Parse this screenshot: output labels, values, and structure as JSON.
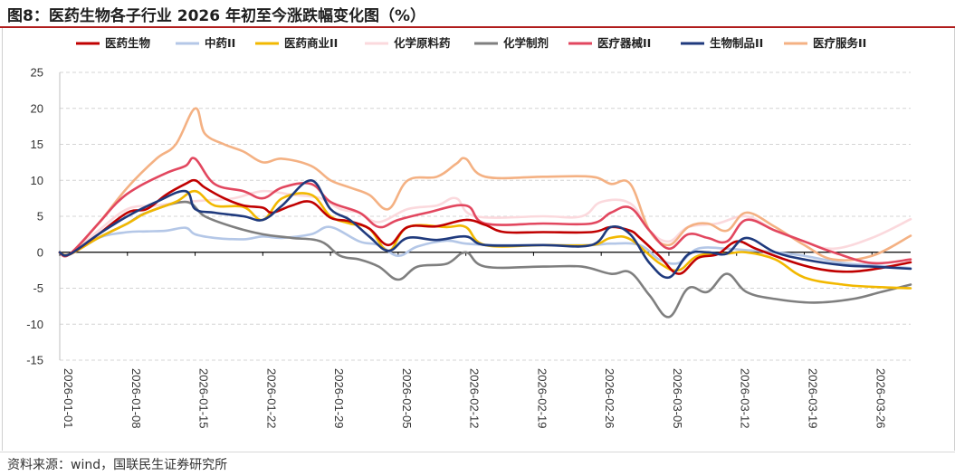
{
  "figure": {
    "title": "图8：医药生物各子行业 2026 年初至今涨跌幅变化图（%）",
    "source": "资料来源：wind，国联民生证券研究所"
  },
  "chart_data": {
    "type": "line",
    "title": "",
    "xlabel": "",
    "ylabel": "",
    "ylim": [
      -15,
      25
    ],
    "yticks": [
      -15,
      -10,
      -5,
      0,
      5,
      10,
      15,
      20,
      25
    ],
    "xlim": [
      "2026-01-01",
      "2026-03-30"
    ],
    "x_tick_labels": [
      "2026-01-01",
      "2026-01-08",
      "2026-01-15",
      "2026-01-22",
      "2026-01-29",
      "2026-02-05",
      "2026-02-12",
      "2026-02-19",
      "2026-02-26",
      "2026-03-05",
      "2026-03-12",
      "2026-03-19",
      "2026-03-26"
    ],
    "grid": "horizontal dashed",
    "legend_position": "top",
    "series": [
      {
        "name": "医药生物",
        "color": "#c00000",
        "x": [
          "2026-01-01",
          "2026-01-02",
          "2026-01-05",
          "2026-01-08",
          "2026-01-10",
          "2026-01-12",
          "2026-01-14",
          "2026-01-15",
          "2026-01-16",
          "2026-01-18",
          "2026-01-20",
          "2026-01-22",
          "2026-01-23",
          "2026-01-25",
          "2026-01-27",
          "2026-01-29",
          "2026-01-31",
          "2026-02-02",
          "2026-02-04",
          "2026-02-06",
          "2026-02-09",
          "2026-02-12",
          "2026-02-14",
          "2026-02-16",
          "2026-02-20",
          "2026-02-25",
          "2026-02-27",
          "2026-03-01",
          "2026-03-02",
          "2026-03-04",
          "2026-03-06",
          "2026-03-08",
          "2026-03-10",
          "2026-03-12",
          "2026-03-14",
          "2026-03-17",
          "2026-03-20",
          "2026-03-23",
          "2026-03-26",
          "2026-03-30"
        ],
        "y": [
          0,
          -0.3,
          2.5,
          5.5,
          6,
          8,
          9.5,
          10,
          9,
          7.5,
          6.5,
          6.2,
          5.5,
          6.5,
          7,
          4.8,
          4.3,
          3.3,
          1,
          3.5,
          3.6,
          4.5,
          3.8,
          2.8,
          2.8,
          2.8,
          3.5,
          3,
          2,
          -0.5,
          -3,
          -0.8,
          -0.3,
          1.5,
          0.5,
          -1,
          -2.2,
          -2.7,
          -2.4,
          -1.4
        ]
      },
      {
        "name": "中药II",
        "color": "#b4c7e7",
        "x": [
          "2026-01-01",
          "2026-01-02",
          "2026-01-05",
          "2026-01-08",
          "2026-01-10",
          "2026-01-12",
          "2026-01-14",
          "2026-01-15",
          "2026-01-17",
          "2026-01-20",
          "2026-01-22",
          "2026-01-24",
          "2026-01-27",
          "2026-01-29",
          "2026-02-01",
          "2026-02-03",
          "2026-02-05",
          "2026-02-07",
          "2026-02-10",
          "2026-02-12",
          "2026-02-15",
          "2026-02-20",
          "2026-02-25",
          "2026-02-27",
          "2026-03-02",
          "2026-03-04",
          "2026-03-06",
          "2026-03-08",
          "2026-03-11",
          "2026-03-13",
          "2026-03-16",
          "2026-03-19",
          "2026-03-23",
          "2026-03-26",
          "2026-03-30"
        ],
        "y": [
          0,
          -0.3,
          2,
          2.8,
          2.9,
          3,
          3.4,
          2.5,
          2,
          1.8,
          2.2,
          2,
          2.5,
          3.5,
          1.5,
          1,
          -0.5,
          0.8,
          1.6,
          1.2,
          1,
          1,
          1,
          1.2,
          1,
          -1,
          -1.5,
          0.5,
          0.5,
          0.3,
          0,
          -0.5,
          -1.5,
          -1.8,
          -2.2
        ]
      },
      {
        "name": "医药商业II",
        "color": "#f2b800",
        "x": [
          "2026-01-01",
          "2026-01-02",
          "2026-01-05",
          "2026-01-08",
          "2026-01-10",
          "2026-01-13",
          "2026-01-15",
          "2026-01-17",
          "2026-01-20",
          "2026-01-22",
          "2026-01-24",
          "2026-01-27",
          "2026-01-29",
          "2026-01-31",
          "2026-02-02",
          "2026-02-04",
          "2026-02-06",
          "2026-02-10",
          "2026-02-12",
          "2026-02-14",
          "2026-02-20",
          "2026-02-25",
          "2026-02-27",
          "2026-03-01",
          "2026-03-04",
          "2026-03-06",
          "2026-03-08",
          "2026-03-11",
          "2026-03-13",
          "2026-03-16",
          "2026-03-19",
          "2026-03-23",
          "2026-03-26",
          "2026-03-30"
        ],
        "y": [
          0,
          -0.3,
          2,
          4,
          5.5,
          7,
          8.5,
          6.5,
          6.3,
          4.5,
          7.5,
          8,
          5,
          4,
          3.3,
          0.2,
          3.5,
          3.5,
          3.5,
          1,
          1,
          1,
          2,
          1.8,
          -1.5,
          -2.5,
          -0.5,
          -0.2,
          0,
          -1,
          -3.5,
          -4.5,
          -4.8,
          -5
        ]
      },
      {
        "name": "化学原料药",
        "color": "#fbd9dd",
        "x": [
          "2026-01-01",
          "2026-01-02",
          "2026-01-05",
          "2026-01-08",
          "2026-01-11",
          "2026-01-14",
          "2026-01-16",
          "2026-01-19",
          "2026-01-22",
          "2026-01-25",
          "2026-01-28",
          "2026-01-30",
          "2026-02-01",
          "2026-02-03",
          "2026-02-06",
          "2026-02-09",
          "2026-02-11",
          "2026-02-13",
          "2026-02-20",
          "2026-02-24",
          "2026-02-26",
          "2026-03-01",
          "2026-03-03",
          "2026-03-05",
          "2026-03-07",
          "2026-03-10",
          "2026-03-13",
          "2026-03-16",
          "2026-03-19",
          "2026-03-22",
          "2026-03-26",
          "2026-03-30"
        ],
        "y": [
          0,
          -0.3,
          3,
          6,
          6.5,
          7,
          7.2,
          7.5,
          8.5,
          8,
          7.5,
          6,
          5.5,
          4.2,
          6,
          6.5,
          7.5,
          5,
          5,
          5,
          7,
          6.8,
          3,
          1.5,
          3.5,
          4,
          5,
          3,
          1.5,
          0.5,
          2,
          4.6
        ]
      },
      {
        "name": "化学制剂",
        "color": "#7f7f7f",
        "x": [
          "2026-01-01",
          "2026-01-02",
          "2026-01-05",
          "2026-01-08",
          "2026-01-10",
          "2026-01-14",
          "2026-01-16",
          "2026-01-19",
          "2026-01-22",
          "2026-01-25",
          "2026-01-28",
          "2026-01-30",
          "2026-02-01",
          "2026-02-03",
          "2026-02-05",
          "2026-02-07",
          "2026-02-10",
          "2026-02-12",
          "2026-02-14",
          "2026-02-20",
          "2026-02-24",
          "2026-02-27",
          "2026-03-01",
          "2026-03-03",
          "2026-03-05",
          "2026-03-07",
          "2026-03-09",
          "2026-03-11",
          "2026-03-13",
          "2026-03-16",
          "2026-03-20",
          "2026-03-24",
          "2026-03-27",
          "2026-03-30"
        ],
        "y": [
          0,
          -0.3,
          2,
          4,
          5.5,
          7,
          5,
          3.5,
          2.5,
          2,
          1.5,
          -0.5,
          -1,
          -2,
          -3.8,
          -2,
          -1.6,
          0,
          -2,
          -2,
          -2,
          -3,
          -2.8,
          -6,
          -9,
          -5,
          -5.5,
          -3,
          -5.5,
          -6.5,
          -7,
          -6.5,
          -5.5,
          -4.5
        ]
      },
      {
        "name": "医疗器械II",
        "color": "#e2475f",
        "x": [
          "2026-01-01",
          "2026-01-02",
          "2026-01-05",
          "2026-01-07",
          "2026-01-09",
          "2026-01-12",
          "2026-01-14",
          "2026-01-15",
          "2026-01-17",
          "2026-01-20",
          "2026-01-22",
          "2026-01-24",
          "2026-01-27",
          "2026-01-29",
          "2026-02-01",
          "2026-02-03",
          "2026-02-05",
          "2026-02-08",
          "2026-02-12",
          "2026-02-14",
          "2026-02-20",
          "2026-02-25",
          "2026-02-27",
          "2026-03-01",
          "2026-03-03",
          "2026-03-05",
          "2026-03-07",
          "2026-03-09",
          "2026-03-11",
          "2026-03-13",
          "2026-03-16",
          "2026-03-19",
          "2026-03-22",
          "2026-03-26",
          "2026-03-30"
        ],
        "y": [
          0,
          -0.3,
          4,
          7,
          9,
          11,
          12,
          13,
          9.5,
          8.5,
          7.5,
          9,
          9.5,
          7,
          5.5,
          3.5,
          4.5,
          5.5,
          6.5,
          4,
          4,
          4,
          5.5,
          6.2,
          3,
          0.5,
          2.5,
          2,
          1.5,
          4.5,
          3,
          1.5,
          0,
          -1.5,
          -1
        ]
      },
      {
        "name": "生物制品II",
        "color": "#1f3a7d",
        "x": [
          "2026-01-01",
          "2026-01-02",
          "2026-01-05",
          "2026-01-08",
          "2026-01-11",
          "2026-01-14",
          "2026-01-15",
          "2026-01-17",
          "2026-01-20",
          "2026-01-22",
          "2026-01-24",
          "2026-01-27",
          "2026-01-29",
          "2026-01-31",
          "2026-02-02",
          "2026-02-04",
          "2026-02-06",
          "2026-02-09",
          "2026-02-12",
          "2026-02-14",
          "2026-02-20",
          "2026-02-25",
          "2026-02-27",
          "2026-03-01",
          "2026-03-03",
          "2026-03-05",
          "2026-03-07",
          "2026-03-09",
          "2026-03-11",
          "2026-03-13",
          "2026-03-16",
          "2026-03-19",
          "2026-03-23",
          "2026-03-26",
          "2026-03-30"
        ],
        "y": [
          0,
          -0.3,
          2.5,
          5,
          7,
          8.5,
          6,
          5.5,
          5,
          4.5,
          6.5,
          10,
          6,
          4.5,
          2.2,
          0.2,
          2,
          1.7,
          2.2,
          1,
          1,
          1,
          3.5,
          2.5,
          -1.5,
          -3.5,
          -0.3,
          0,
          -0.2,
          2,
          0,
          -1,
          -1.8,
          -2,
          -2.3
        ]
      },
      {
        "name": "医疗服务II",
        "color": "#f4b183",
        "x": [
          "2026-01-01",
          "2026-01-02",
          "2026-01-05",
          "2026-01-08",
          "2026-01-11",
          "2026-01-13",
          "2026-01-15",
          "2026-01-16",
          "2026-01-18",
          "2026-01-20",
          "2026-01-22",
          "2026-01-24",
          "2026-01-27",
          "2026-01-29",
          "2026-01-31",
          "2026-02-02",
          "2026-02-04",
          "2026-02-06",
          "2026-02-09",
          "2026-02-11",
          "2026-02-12",
          "2026-02-14",
          "2026-02-20",
          "2026-02-25",
          "2026-02-27",
          "2026-03-01",
          "2026-03-03",
          "2026-03-05",
          "2026-03-07",
          "2026-03-09",
          "2026-03-11",
          "2026-03-13",
          "2026-03-16",
          "2026-03-19",
          "2026-03-22",
          "2026-03-26",
          "2026-03-30"
        ],
        "y": [
          0,
          -0.3,
          4,
          9,
          13,
          15,
          20,
          16.5,
          15,
          14,
          12.5,
          13,
          12,
          10,
          9,
          8,
          6,
          10,
          10.5,
          12.3,
          13,
          10.5,
          10.5,
          10.5,
          9.5,
          9.5,
          3,
          1,
          3.5,
          4,
          3,
          5.5,
          3.5,
          1,
          -1,
          -0.5,
          2.3
        ]
      }
    ]
  }
}
